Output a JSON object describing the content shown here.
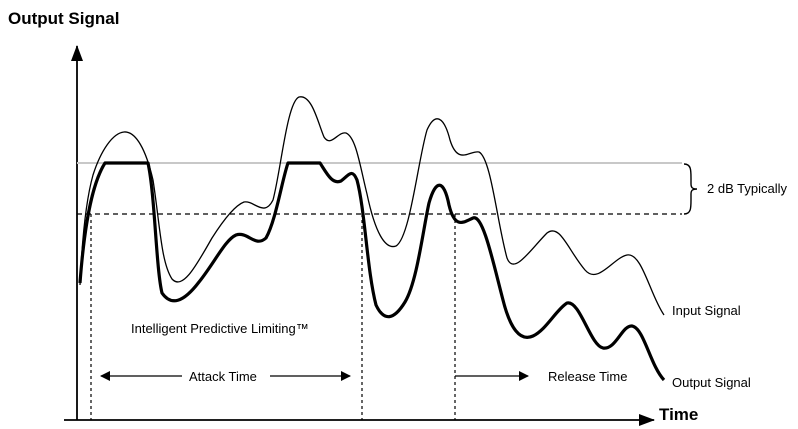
{
  "labels": {
    "y_axis_title": "Output Signal",
    "x_axis_title": "Time",
    "threshold_note": "2 dB Typically",
    "input_signal": "Input Signal",
    "output_signal": "Output Signal",
    "limiting": "Intelligent Predictive Limiting™",
    "attack_time": "Attack Time",
    "release_time": "Release Time"
  }
}
